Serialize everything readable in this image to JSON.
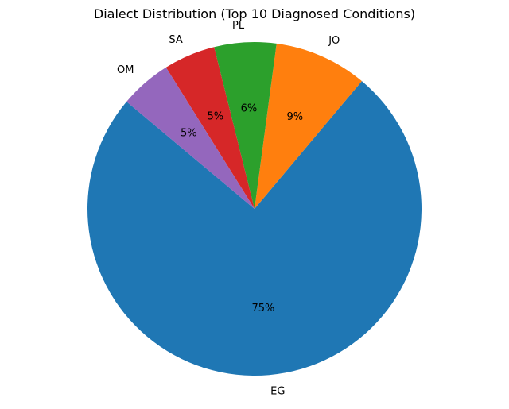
{
  "chart_data": {
    "type": "pie",
    "title": "Dialect Distribution (Top 10 Diagnosed Conditions)",
    "slices": [
      {
        "label": "EG",
        "value": 75,
        "pct_label": "75%",
        "color": "#1f77b4"
      },
      {
        "label": "JO",
        "value": 9,
        "pct_label": "9%",
        "color": "#ff7f0e"
      },
      {
        "label": "PL",
        "value": 6,
        "pct_label": "6%",
        "color": "#2ca02c"
      },
      {
        "label": "SA",
        "value": 5,
        "pct_label": "5%",
        "color": "#d62728"
      },
      {
        "label": "OM",
        "value": 5,
        "pct_label": "5%",
        "color": "#9467bd"
      }
    ],
    "legend": "none"
  }
}
